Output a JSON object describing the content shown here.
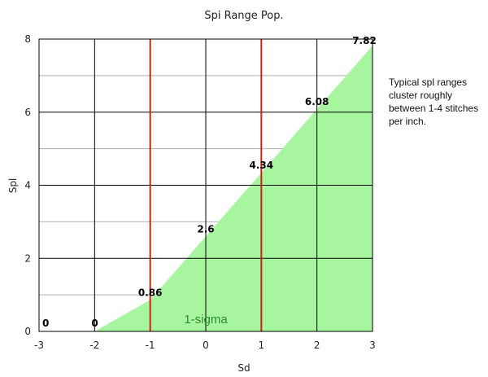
{
  "chart_data": {
    "type": "area",
    "title": "Spi Range Pop.",
    "xlabel": "Sd",
    "ylabel": "Spl",
    "xlim": [
      -3,
      3
    ],
    "ylim": [
      0,
      8
    ],
    "x_ticks": [
      "-3",
      "-2",
      "-1",
      "0",
      "1",
      "2",
      "3"
    ],
    "y_ticks": [
      "0",
      "2",
      "4",
      "6",
      "8"
    ],
    "x": [
      -3,
      -2,
      -1,
      0,
      1,
      2,
      3
    ],
    "y": [
      0,
      0,
      0.86,
      2.6,
      4.34,
      6.08,
      7.82
    ],
    "data_labels": [
      "0",
      "0",
      "0.86",
      "2.6",
      "4.34",
      "6.08",
      "7.82"
    ],
    "vertical_lines": [
      -1,
      1
    ],
    "band_label": "1-sigma",
    "grid": true,
    "colors": {
      "fill": "#a8f5a0",
      "vlines": "#c0281a",
      "major_grid": "#000000",
      "minor_grid": "#b0b0b0",
      "band_label": "#2f8a2f"
    }
  },
  "note": "Typical spl ranges cluster roughly between 1-4 stitches per inch."
}
